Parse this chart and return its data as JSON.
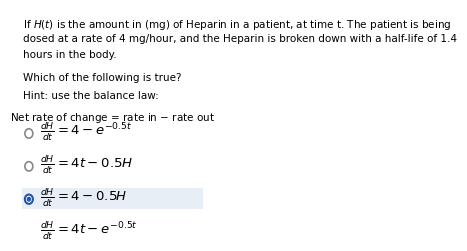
{
  "title_text": "If $H(t)$ is the amount in (mg) of Heparin in a patient, at time t. The patient is being\ndosed at a rate of 4 mg/hour, and the Heparin is broken down with a half-life of 1.4\nhours in the body.",
  "question": "Which of the following is true?",
  "hint_label": "Hint: use the balance law:",
  "balance_law": "Net rate of change = rate in $-$ rate out",
  "options": [
    {
      "label": "$\\frac{dH}{dt} = 4 - e^{-0.5t}$",
      "selected": false
    },
    {
      "label": "$\\frac{dH}{dt} = 4t - 0.5H$",
      "selected": false
    },
    {
      "label": "$\\frac{dH}{dt} = 4 - 0.5H$",
      "selected": true
    },
    {
      "label": "$\\frac{dH}{dt} = 4t - e^{-0.5t}$",
      "selected": false
    }
  ],
  "selected_bg": "#e8eef6",
  "radio_color_unselected": "#888888",
  "radio_color_selected": "#2255aa",
  "text_color": "#000000",
  "bg_color": "#ffffff",
  "font_size_body": 7.5,
  "font_size_option": 9.5
}
